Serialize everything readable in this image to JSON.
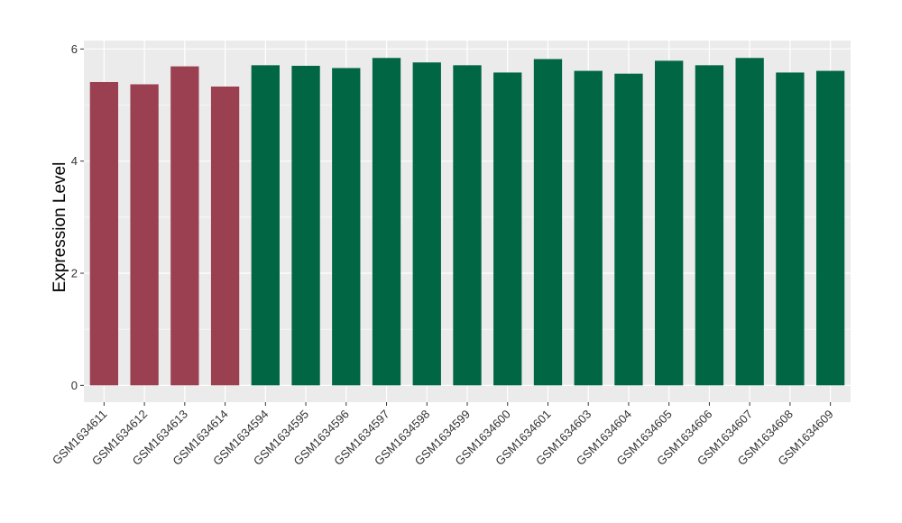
{
  "chart_data": {
    "type": "bar",
    "title": "",
    "xlabel": "",
    "ylabel": "Expression Level",
    "ylim": [
      -0.3,
      6.15
    ],
    "yticks": [
      0,
      2,
      4,
      6
    ],
    "grid": true,
    "legend": "none",
    "categories": [
      "GSM1634611",
      "GSM1634612",
      "GSM1634613",
      "GSM1634614",
      "GSM1634594",
      "GSM1634595",
      "GSM1634596",
      "GSM1634597",
      "GSM1634598",
      "GSM1634599",
      "GSM1634600",
      "GSM1634601",
      "GSM1634603",
      "GSM1634604",
      "GSM1634605",
      "GSM1634606",
      "GSM1634607",
      "GSM1634608",
      "GSM1634609"
    ],
    "values": [
      5.41,
      5.37,
      5.69,
      5.33,
      5.71,
      5.7,
      5.66,
      5.84,
      5.76,
      5.71,
      5.58,
      5.82,
      5.61,
      5.56,
      5.79,
      5.71,
      5.84,
      5.58,
      5.61
    ],
    "groups": [
      "a",
      "a",
      "a",
      "a",
      "b",
      "b",
      "b",
      "b",
      "b",
      "b",
      "b",
      "b",
      "b",
      "b",
      "b",
      "b",
      "b",
      "b",
      "b"
    ],
    "group_colors": {
      "a": "#9a4050",
      "b": "#006643"
    },
    "panel_color": "#ebebeb",
    "grid_color": "#ffffff"
  }
}
